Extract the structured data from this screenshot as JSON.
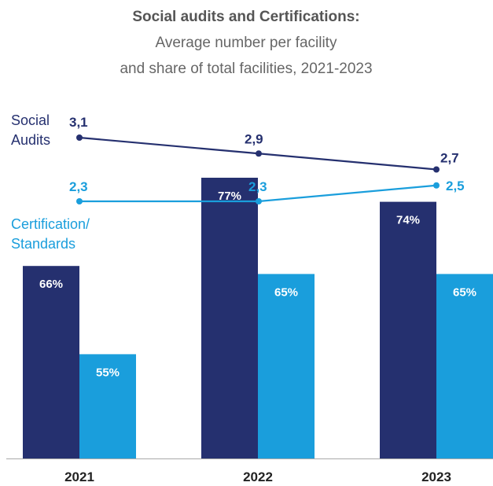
{
  "chart_data": {
    "type": "bar",
    "title": "Social audits and Certifications:",
    "subtitle_lines": [
      "Average number per facility",
      "and share of total facilities, 2021-2023"
    ],
    "categories": [
      "2021",
      "2022",
      "2023"
    ],
    "bar_series": [
      {
        "values": [
          66,
          77,
          74
        ],
        "labels": [
          "66%",
          "77%",
          "74%"
        ],
        "color": "#25306f"
      },
      {
        "values": [
          55,
          65,
          65
        ],
        "labels": [
          "55%",
          "65%",
          "65%"
        ],
        "color": "#1a9edc"
      }
    ],
    "line_series": [
      {
        "name_lines": [
          "Social",
          "Audits"
        ],
        "values": [
          3.1,
          2.9,
          2.7
        ],
        "labels": [
          "3,1",
          "2,9",
          "2,7"
        ],
        "color": "#25306f"
      },
      {
        "name_lines": [
          "Certification/",
          "Standards"
        ],
        "values": [
          2.3,
          2.3,
          2.5
        ],
        "labels": [
          "2,3",
          "2,3",
          "2,5"
        ],
        "color": "#1a9edc"
      }
    ],
    "bar_unit": "%",
    "grid": false
  },
  "colors": {
    "text_title": "#555555",
    "axis": "#aaaaaa"
  }
}
